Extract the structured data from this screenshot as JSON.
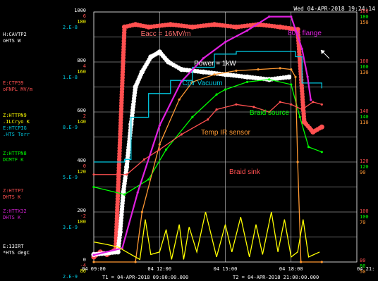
{
  "header": {
    "datetime": "Wed 04-APR-2018 19:24:14"
  },
  "channels": [
    {
      "line1": "H:CAVTP2",
      "line2": "oHTS    W",
      "color": "#ffffff"
    },
    {
      "line1": "E:CTP39",
      "line2": "oFNPL   MV/m",
      "color": "#ff5050"
    },
    {
      "line1": "Z:HTTPN9",
      "line2": ".ILCryo K",
      "color": "#ffff00"
    },
    {
      "line1": "E:HTCPIG",
      "line2": ".HTS    Torr",
      "color": "#00c8e0"
    },
    {
      "line1": "Z:HTTPN8",
      "line2": "DCMTF   K",
      "color": "#00ff00"
    },
    {
      "line1": "Z:HTTP7",
      "line2": "DHTS    K",
      "color": "#ff5050"
    },
    {
      "line1": "Z:HTTX32",
      "line2": "DHTS    K",
      "color": "#d020d0"
    },
    {
      "line1": "E:13IRT",
      "line2": "*HTS   degC",
      "color": "#ffffff"
    }
  ],
  "left_axis_rows": [
    {
      "v1": "1000",
      "v2": "6",
      "v3": "180",
      "v4": "2.E-8"
    },
    {
      "v1": "800",
      "v2": "4",
      "v3": "160",
      "v4": "1.E-8"
    },
    {
      "v1": "600",
      "v2": "2",
      "v3": "140",
      "v4": "8.E-9"
    },
    {
      "v1": "400",
      "v2": "0",
      "v3": "120",
      "v4": "5.E-9"
    },
    {
      "v1": "200",
      "v2": "-2",
      "v3": "100",
      "v4": "3.E-9"
    },
    {
      "v1": "0",
      "v2": "-4",
      "v3": "80",
      "v4": "2.E-9"
    }
  ],
  "right_axis_rows": [
    {
      "a": "180",
      "b": "180",
      "c": "150"
    },
    {
      "a": "160",
      "b": "160",
      "c": "130"
    },
    {
      "a": "140",
      "b": "140",
      "c": "110"
    },
    {
      "a": "120",
      "b": "120",
      "c": "90"
    },
    {
      "a": "100",
      "b": "100",
      "c": "70"
    },
    {
      "a": "80",
      "b": "80",
      "c": "50"
    }
  ],
  "footer": {
    "t1": "T1 = 04-APR-2018 09:00:00.000",
    "t2": "T2 = 04-APR-2018 21:00:00.000"
  },
  "chart_data": {
    "type": "line",
    "x_range": [
      "04 09:00",
      "04 21:00"
    ],
    "x_ticks": [
      "04 09:00",
      "04 12:00",
      "04 15:00",
      "04 18:00",
      "04 21:"
    ],
    "series": [
      {
        "name": "Eacc = 16MV/m",
        "color": "#ff5050",
        "style": "dots",
        "points": [
          [
            9.0,
            -3.8
          ],
          [
            9.3,
            -3.6
          ],
          [
            9.6,
            -3.7
          ],
          [
            10.0,
            -3.5
          ],
          [
            10.4,
            5.4
          ],
          [
            10.9,
            5.5
          ],
          [
            11.5,
            5.4
          ],
          [
            12.5,
            5.5
          ],
          [
            13.5,
            5.4
          ],
          [
            14.5,
            5.5
          ],
          [
            15.5,
            5.4
          ],
          [
            16.5,
            5.5
          ],
          [
            17.5,
            5.4
          ],
          [
            18.3,
            5.3
          ],
          [
            18.6,
            1.6
          ],
          [
            19.0,
            1.2
          ],
          [
            19.4,
            1.4
          ]
        ]
      },
      {
        "name": "Power = 1kW",
        "color": "#ffffff",
        "style": "dots",
        "points": [
          [
            9.0,
            30
          ],
          [
            10.1,
            40
          ],
          [
            10.2,
            120
          ],
          [
            10.35,
            280
          ],
          [
            10.5,
            380
          ],
          [
            10.7,
            550
          ],
          [
            10.9,
            700
          ],
          [
            11.2,
            760
          ],
          [
            11.6,
            820
          ],
          [
            12.0,
            840
          ],
          [
            12.4,
            800
          ],
          [
            13.0,
            770
          ],
          [
            14.0,
            760
          ],
          [
            15.0,
            750
          ],
          [
            16.0,
            740
          ],
          [
            17.0,
            730
          ],
          [
            17.9,
            740
          ]
        ]
      },
      {
        "name": "Cplr Vacuum",
        "color": "#00c8e0",
        "style": "step",
        "points": [
          [
            9.0,
            5.8e-09
          ],
          [
            10.4,
            5.9e-09
          ],
          [
            10.7,
            7.5e-09
          ],
          [
            11.5,
            8.4e-09
          ],
          [
            12.5,
            8.9e-09
          ],
          [
            13.5,
            9.4e-09
          ],
          [
            14.5,
            9.9e-09
          ],
          [
            15.5,
            1e-08
          ],
          [
            16.5,
            1e-08
          ],
          [
            17.5,
            1e-08
          ],
          [
            18.2,
            9.8e-09
          ],
          [
            18.5,
            8.8e-09
          ],
          [
            19.4,
            8.6e-09
          ]
        ]
      },
      {
        "name": "Braid source",
        "color": "#00ff00",
        "style": "line",
        "points": [
          [
            9.0,
            110
          ],
          [
            10.4,
            107
          ],
          [
            11.5,
            113
          ],
          [
            12.3,
            125
          ],
          [
            13.5,
            138
          ],
          [
            14.6,
            147
          ],
          [
            15.0,
            149
          ],
          [
            16.0,
            152
          ],
          [
            17.0,
            153
          ],
          [
            18.0,
            151
          ],
          [
            18.4,
            138
          ],
          [
            18.8,
            126
          ],
          [
            19.4,
            124
          ]
        ]
      },
      {
        "name": "Temp IR sensor",
        "color": "#ff9933",
        "style": "line",
        "points": [
          [
            9.0,
            -4
          ],
          [
            10.9,
            -4
          ],
          [
            11.2,
            -2
          ],
          [
            12.0,
            0.7
          ],
          [
            12.9,
            2.5
          ],
          [
            13.5,
            3.2
          ],
          [
            14.5,
            3.5
          ],
          [
            15.5,
            3.65
          ],
          [
            16.5,
            3.7
          ],
          [
            17.5,
            3.75
          ],
          [
            18.0,
            3.7
          ],
          [
            18.2,
            3.4
          ],
          [
            18.3,
            0
          ],
          [
            18.45,
            -4
          ],
          [
            19.4,
            -4
          ]
        ]
      },
      {
        "name": "Braid sink",
        "color": "#ff5050",
        "style": "line",
        "points": [
          [
            9.0,
            85
          ],
          [
            10.5,
            85
          ],
          [
            11.3,
            91
          ],
          [
            12.0,
            95
          ],
          [
            13.0,
            101
          ],
          [
            14.2,
            107
          ],
          [
            14.6,
            111
          ],
          [
            15.5,
            113
          ],
          [
            16.3,
            112
          ],
          [
            17.0,
            110
          ],
          [
            17.5,
            114
          ],
          [
            18.0,
            113
          ],
          [
            18.5,
            111
          ],
          [
            19.0,
            114
          ],
          [
            19.4,
            113
          ]
        ]
      },
      {
        "name": "80K flange",
        "color": "#e020e0",
        "style": "line",
        "points": [
          [
            9.0,
            83
          ],
          [
            10.3,
            86
          ],
          [
            11.0,
            110
          ],
          [
            12.0,
            139
          ],
          [
            13.0,
            158
          ],
          [
            14.0,
            168
          ],
          [
            15.0,
            175
          ],
          [
            16.0,
            180
          ],
          [
            17.0,
            186
          ],
          [
            18.0,
            186
          ],
          [
            18.5,
            172
          ],
          [
            18.75,
            160
          ],
          [
            18.9,
            150
          ]
        ]
      },
      {
        "name": "",
        "color": "#ffff00",
        "style": "line",
        "points": [
          [
            9.0,
            -3.2
          ],
          [
            9.6,
            -3.3
          ],
          [
            10.1,
            -3.4
          ],
          [
            10.5,
            -3.6
          ],
          [
            11.1,
            -3.9
          ],
          [
            11.35,
            -2.3
          ],
          [
            11.6,
            -3.7
          ],
          [
            12.0,
            -3.6
          ],
          [
            12.3,
            -2.7
          ],
          [
            12.55,
            -3.9
          ],
          [
            12.9,
            -2.5
          ],
          [
            13.1,
            -3.9
          ],
          [
            13.35,
            -2.6
          ],
          [
            13.7,
            -3.6
          ],
          [
            14.1,
            -2.0
          ],
          [
            14.6,
            -3.8
          ],
          [
            15.0,
            -2.5
          ],
          [
            15.3,
            -3.6
          ],
          [
            15.7,
            -2.2
          ],
          [
            16.1,
            -3.8
          ],
          [
            16.4,
            -2.5
          ],
          [
            16.7,
            -3.7
          ],
          [
            17.1,
            -2.0
          ],
          [
            17.4,
            -3.6
          ],
          [
            17.7,
            -2.3
          ],
          [
            18.0,
            -3.8
          ],
          [
            18.3,
            -3.6
          ],
          [
            18.55,
            -2.3
          ],
          [
            18.8,
            -3.8
          ],
          [
            19.3,
            -3.6
          ]
        ]
      }
    ],
    "grid": true,
    "arrow_annotation": "80K flange"
  }
}
